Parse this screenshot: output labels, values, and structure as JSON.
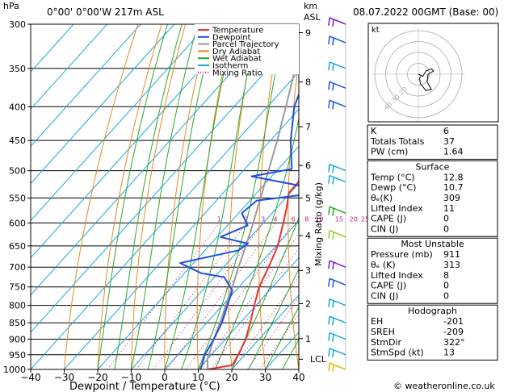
{
  "header": {
    "location": "0°00' 0°00'W 217m ASL",
    "datetime": "08.07.2022 00GMT (Base: 00)"
  },
  "axes": {
    "pressure_unit": "hPa",
    "km_unit": "km",
    "asl_label": "ASL",
    "xlabel": "Dewpoint / Temperature (°C)",
    "mixing_label": "Mixing Ratio (g/kg)",
    "lcl_label": "LCL"
  },
  "legend": {
    "items": [
      {
        "label": "Temperature",
        "color": "#e8312c"
      },
      {
        "label": "Dewpoint",
        "color": "#1f4fe0"
      },
      {
        "label": "Parcel Trajectory",
        "color": "#9a9a9a"
      },
      {
        "label": "Dry Adiabat",
        "color": "#e8891e"
      },
      {
        "label": "Wet Adiabat",
        "color": "#2aa72a"
      },
      {
        "label": "Isotherm",
        "color": "#19a7df"
      },
      {
        "label": "Mixing Ratio",
        "color": "#d0108c"
      }
    ]
  },
  "footer": {
    "copyright": "© weatheronline.co.uk"
  },
  "hodograph": {
    "unit": "kt",
    "ring_labels": [
      "40",
      "30",
      "20"
    ]
  },
  "indices": {
    "rows": [
      {
        "label": "K",
        "value": "6"
      },
      {
        "label": "Totals Totals",
        "value": "37"
      },
      {
        "label": "PW (cm)",
        "value": "1.64"
      }
    ]
  },
  "surface": {
    "title": "Surface",
    "rows": [
      {
        "label": "Temp (°C)",
        "value": "12.8"
      },
      {
        "label": "Dewp (°C)",
        "value": "10.7"
      },
      {
        "label": "θₑ(K)",
        "value": "309"
      },
      {
        "label": "Lifted Index",
        "value": "11"
      },
      {
        "label": "CAPE (J)",
        "value": "0"
      },
      {
        "label": "CIN (J)",
        "value": "0"
      }
    ]
  },
  "most_unstable": {
    "title": "Most Unstable",
    "rows": [
      {
        "label": "Pressure (mb)",
        "value": "911"
      },
      {
        "label": "θₑ (K)",
        "value": "313"
      },
      {
        "label": "Lifted Index",
        "value": "8"
      },
      {
        "label": "CAPE (J)",
        "value": "0"
      },
      {
        "label": "CIN (J)",
        "value": "0"
      }
    ]
  },
  "hodo_table": {
    "title": "Hodograph",
    "rows": [
      {
        "label": "EH",
        "value": "-201"
      },
      {
        "label": "SREH",
        "value": "-209"
      },
      {
        "label": "StmDir",
        "value": "322°"
      },
      {
        "label": "StmSpd (kt)",
        "value": "13"
      }
    ]
  },
  "chart_data": {
    "type": "skew-t",
    "pressure_levels": [
      300,
      350,
      400,
      450,
      500,
      550,
      600,
      650,
      700,
      750,
      800,
      850,
      900,
      950,
      1000
    ],
    "pressure_tick_labels": [
      "300",
      "350",
      "400",
      "450",
      "500",
      "550",
      "600",
      "650",
      "700",
      "750",
      "800",
      "850",
      "900",
      "950",
      "1000"
    ],
    "temperature_ticks": [
      -40,
      -30,
      -20,
      -10,
      0,
      10,
      20,
      30,
      40
    ],
    "temperature_tick_labels": [
      "−40",
      "−30",
      "−20",
      "−10",
      "0",
      "10",
      "20",
      "30",
      "40"
    ],
    "km_ticks": [
      {
        "label": "9",
        "p": 309
      },
      {
        "label": "8",
        "p": 367
      },
      {
        "label": "7",
        "p": 429
      },
      {
        "label": "6",
        "p": 491
      },
      {
        "label": "5",
        "p": 550
      },
      {
        "label": "4",
        "p": 627
      },
      {
        "label": "3",
        "p": 708
      },
      {
        "label": "2",
        "p": 795
      },
      {
        "label": "1",
        "p": 898
      }
    ],
    "lcl_p": 965,
    "mixing_ratio_labels": [
      "1",
      "2",
      "3",
      "4",
      "6",
      "8",
      "10",
      "15",
      "20",
      "25"
    ],
    "temperature": [
      {
        "p": 1000,
        "t": 12.8
      },
      {
        "p": 985,
        "t": 19
      },
      {
        "p": 950,
        "t": 18
      },
      {
        "p": 900,
        "t": 16
      },
      {
        "p": 850,
        "t": 13
      },
      {
        "p": 800,
        "t": 9.5
      },
      {
        "p": 750,
        "t": 6
      },
      {
        "p": 700,
        "t": 3.5
      },
      {
        "p": 650,
        "t": 0.5
      },
      {
        "p": 600,
        "t": -4
      },
      {
        "p": 570,
        "t": -7
      },
      {
        "p": 540,
        "t": -10.5
      },
      {
        "p": 520,
        "t": -10.5
      },
      {
        "p": 500,
        "t": -12.5
      },
      {
        "p": 450,
        "t": -19
      },
      {
        "p": 400,
        "t": -26
      },
      {
        "p": 350,
        "t": -34
      },
      {
        "p": 310,
        "t": -40
      },
      {
        "p": 300,
        "t": -41
      }
    ],
    "dewpoint": [
      {
        "p": 1000,
        "t": 10.7
      },
      {
        "p": 950,
        "t": 8
      },
      {
        "p": 900,
        "t": 6.5
      },
      {
        "p": 850,
        "t": 4.5
      },
      {
        "p": 800,
        "t": 1.5
      },
      {
        "p": 760,
        "t": -1
      },
      {
        "p": 725,
        "t": -7
      },
      {
        "p": 715,
        "t": -15
      },
      {
        "p": 690,
        "t": -24
      },
      {
        "p": 660,
        "t": -10
      },
      {
        "p": 645,
        "t": -9
      },
      {
        "p": 630,
        "t": -19
      },
      {
        "p": 605,
        "t": -14
      },
      {
        "p": 580,
        "t": -19
      },
      {
        "p": 555,
        "t": -18
      },
      {
        "p": 545,
        "t": -7
      },
      {
        "p": 530,
        "t": -6
      },
      {
        "p": 510,
        "t": -26
      },
      {
        "p": 497,
        "t": -16
      },
      {
        "p": 450,
        "t": -24
      },
      {
        "p": 400,
        "t": -32
      },
      {
        "p": 350,
        "t": -38
      },
      {
        "p": 320,
        "t": -43
      },
      {
        "p": 300,
        "t": -46
      }
    ],
    "parcel": [
      {
        "p": 1000,
        "t": 12.8
      },
      {
        "p": 965,
        "t": 10
      },
      {
        "p": 900,
        "t": 6.5
      },
      {
        "p": 850,
        "t": 4
      },
      {
        "p": 800,
        "t": 1
      },
      {
        "p": 750,
        "t": -2
      },
      {
        "p": 700,
        "t": -5.5
      },
      {
        "p": 650,
        "t": -9
      },
      {
        "p": 600,
        "t": -13
      },
      {
        "p": 550,
        "t": -17.5
      },
      {
        "p": 500,
        "t": -22.5
      },
      {
        "p": 450,
        "t": -28
      },
      {
        "p": 400,
        "t": -34.5
      },
      {
        "p": 350,
        "t": -42
      },
      {
        "p": 300,
        "t": -50
      }
    ],
    "hodograph_trace": [
      {
        "u": 0,
        "v": 0
      },
      {
        "u": 4,
        "v": -2
      },
      {
        "u": 7,
        "v": 3
      },
      {
        "u": 12,
        "v": 5
      },
      {
        "u": 14,
        "v": 3
      },
      {
        "u": 9,
        "v": 0
      },
      {
        "u": 8,
        "v": -7
      },
      {
        "u": 12,
        "v": -14
      },
      {
        "u": 7,
        "v": -15
      },
      {
        "u": 2,
        "v": -9
      },
      {
        "u": 1,
        "v": -4
      },
      {
        "u": 2,
        "v": -2
      }
    ],
    "wind_barbs": [
      {
        "p": 300,
        "color": "#7a1fc0"
      },
      {
        "p": 320,
        "color": "#1f4fe0"
      },
      {
        "p": 350,
        "color": "#19a7df"
      },
      {
        "p": 375,
        "color": "#1f4fe0"
      },
      {
        "p": 400,
        "color": "#1f4fe0"
      },
      {
        "p": 500,
        "color": "#19a7df"
      },
      {
        "p": 520,
        "color": "#19a7df"
      },
      {
        "p": 580,
        "color": "#2aa72a"
      },
      {
        "p": 630,
        "color": "#9ad22a"
      },
      {
        "p": 700,
        "color": "#7a1fc0"
      },
      {
        "p": 745,
        "color": "#1f4fe0"
      },
      {
        "p": 800,
        "color": "#19a7df"
      },
      {
        "p": 850,
        "color": "#19a7df"
      },
      {
        "p": 900,
        "color": "#19a7df"
      },
      {
        "p": 950,
        "color": "#19a7df"
      },
      {
        "p": 1000,
        "color": "#e0c000"
      }
    ]
  }
}
